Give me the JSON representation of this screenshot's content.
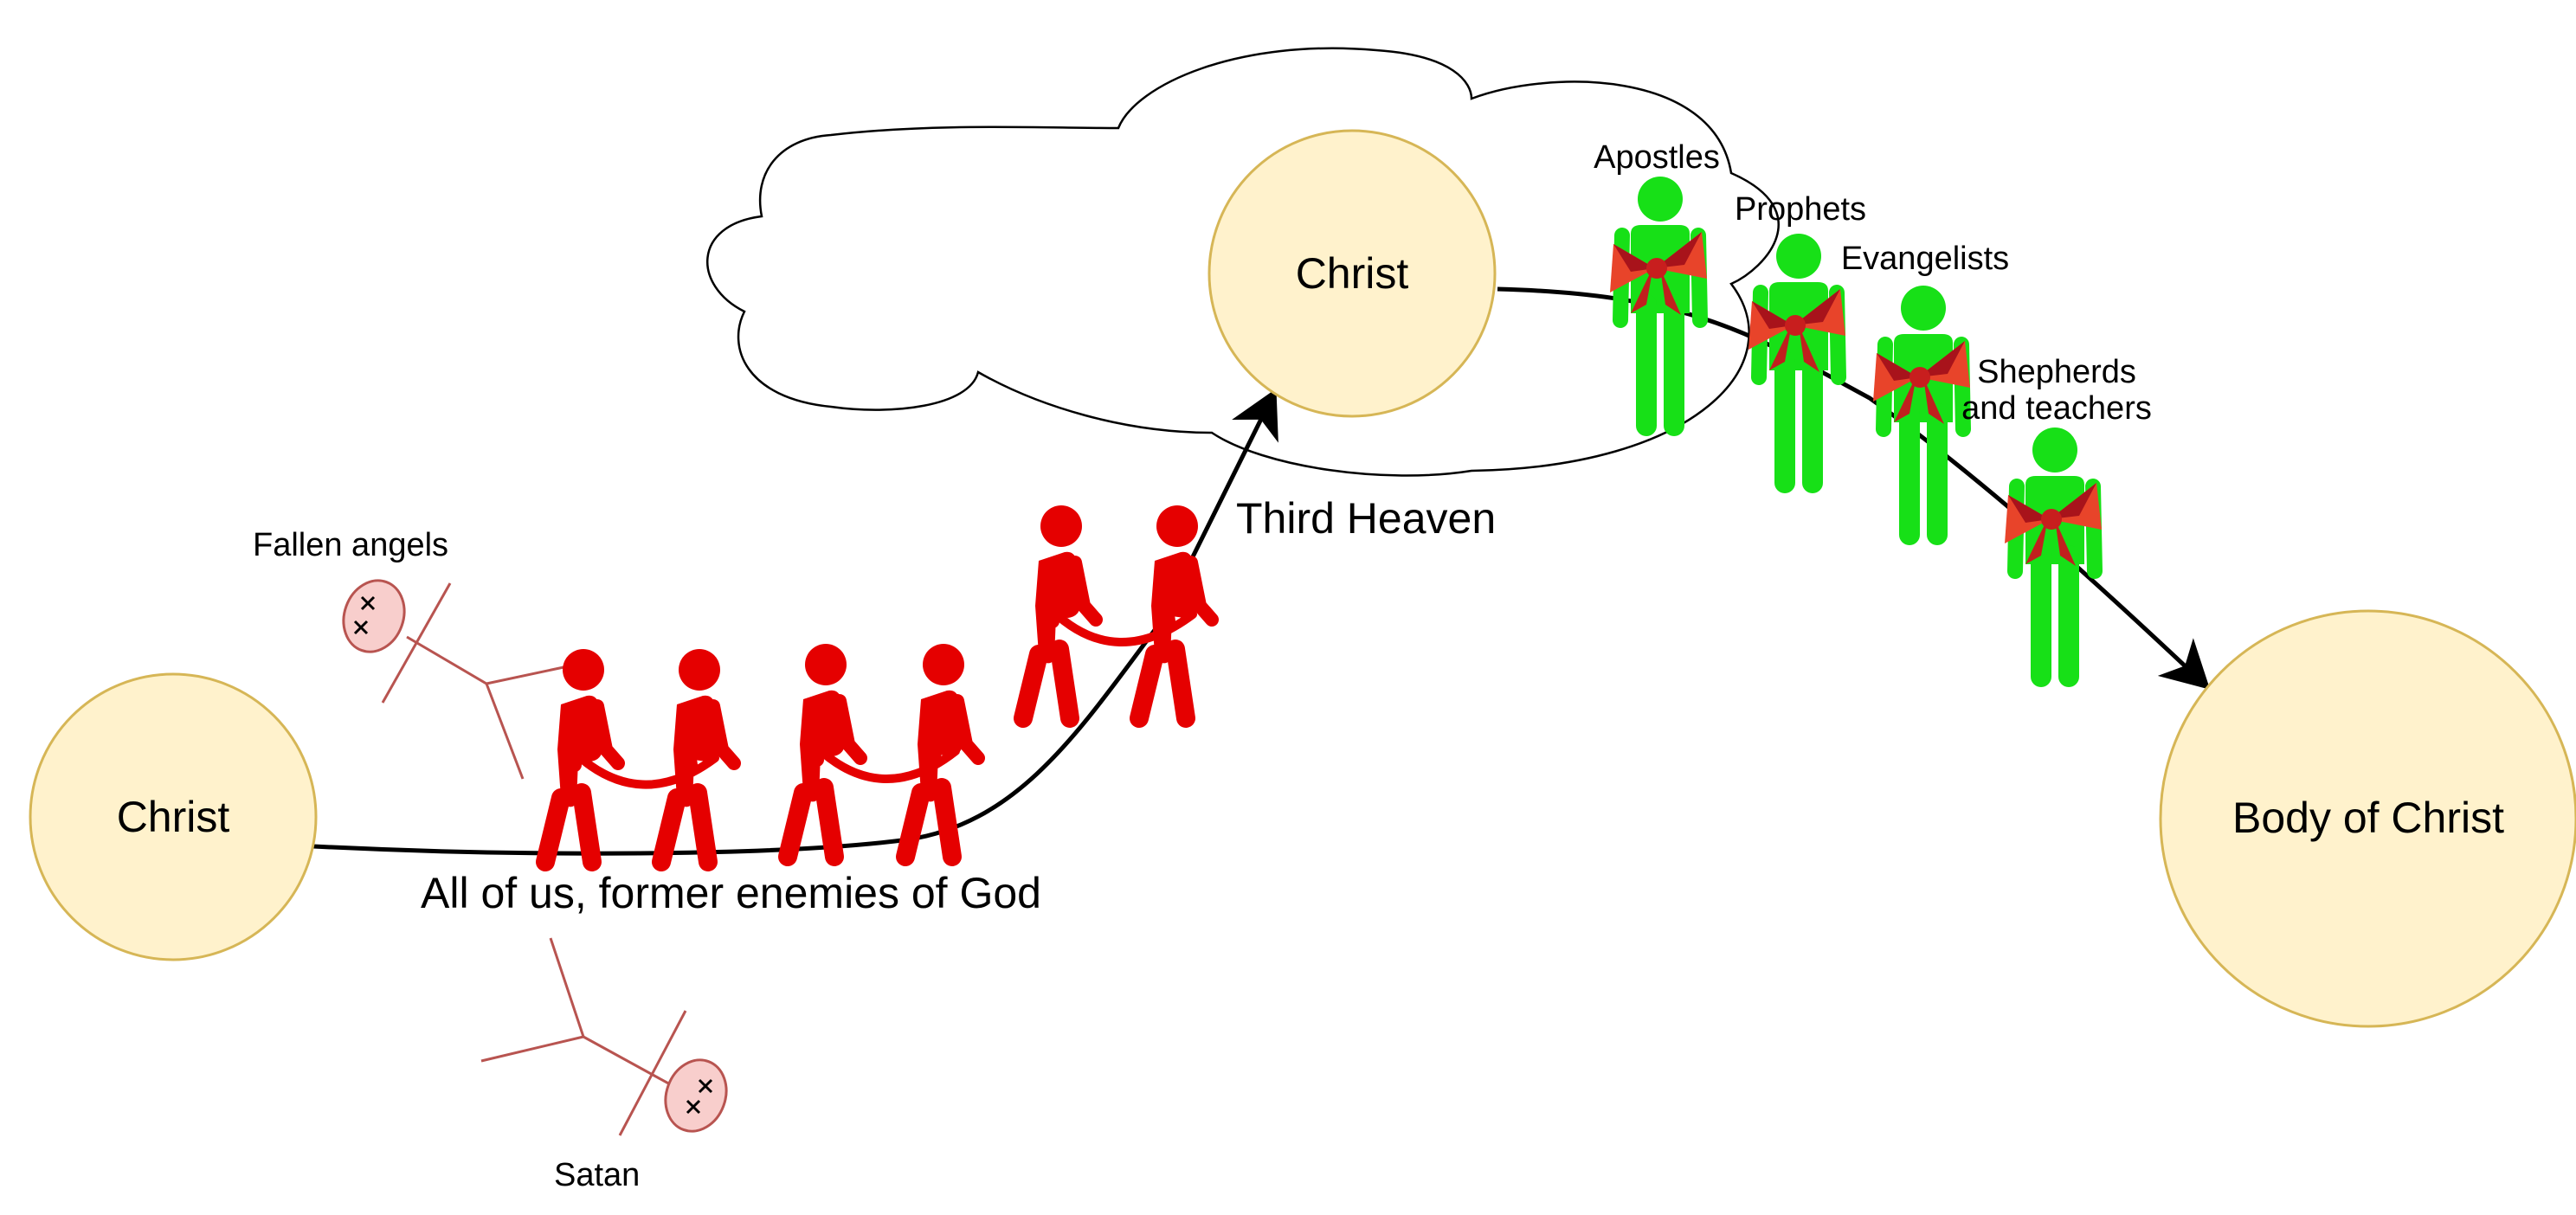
{
  "circles": {
    "left": "Christ",
    "top": "Christ",
    "right": "Body of Christ"
  },
  "labels": {
    "third_heaven": "Third Heaven",
    "fallen_angels": "Fallen angels",
    "satan": "Satan",
    "enemies": "All of us, former enemies of God"
  },
  "gifts": [
    "Apostles",
    "Prophets",
    "Evangelists",
    "Shepherds",
    "and teachers"
  ],
  "colors": {
    "circle_fill": "#fff2cc",
    "circle_stroke": "#d6b656",
    "red_figure": "#e50000",
    "green_figure": "#17e017",
    "bow": "#e8442a",
    "bow_dark": "#a8131b",
    "enemy_fill": "#f8cecc",
    "enemy_stroke": "#b85450"
  },
  "icons": {
    "captive": "person-bending-rope-icon",
    "gift": "person-with-bow-icon",
    "enemy": "fallen-stick-figure-icon"
  }
}
